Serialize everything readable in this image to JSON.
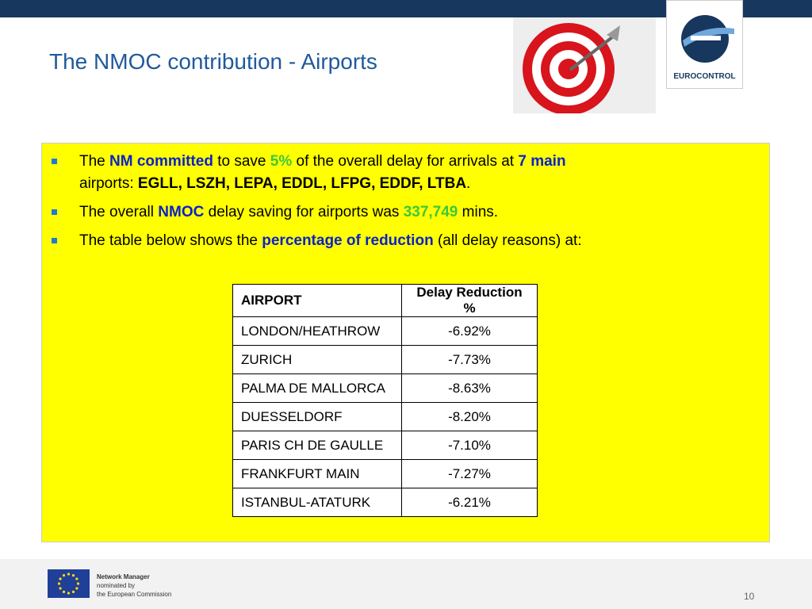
{
  "header": {
    "title": "The NMOC contribution - Airports",
    "logo": "EUROCONTROL"
  },
  "bullets": [
    [
      "The ",
      "NM committed",
      " to save ",
      "5%",
      " of the overall delay for arrivals at ",
      "7 main",
      " airports: ",
      "EGLL, LSZH, LEPA, EDDL, LFPG, EDDF, LTBA",
      "."
    ],
    [
      "The overall ",
      "NMOC",
      " delay saving for airports was ",
      "337,749",
      " mins."
    ],
    [
      "The table below shows the ",
      "percentage of reduction",
      " (all delay reasons) at:"
    ]
  ],
  "table": {
    "header": [
      "AIRPORT",
      "Delay Reduction %"
    ],
    "rows": [
      [
        "LONDON/HEATHROW",
        "-6.92%"
      ],
      [
        "ZURICH",
        "-7.73%"
      ],
      [
        "PALMA DE MALLORCA",
        "-8.63%"
      ],
      [
        "DUESSELDORF",
        "-8.20%"
      ],
      [
        "PARIS CH DE GAULLE",
        "-7.10%"
      ],
      [
        "FRANKFURT MAIN",
        "-7.27%"
      ],
      [
        "ISTANBUL-ATATURK",
        "-6.21%"
      ]
    ]
  },
  "footer": {
    "lines": [
      "Network Manager",
      "nominated by",
      "the European Commission"
    ],
    "page": "10"
  }
}
